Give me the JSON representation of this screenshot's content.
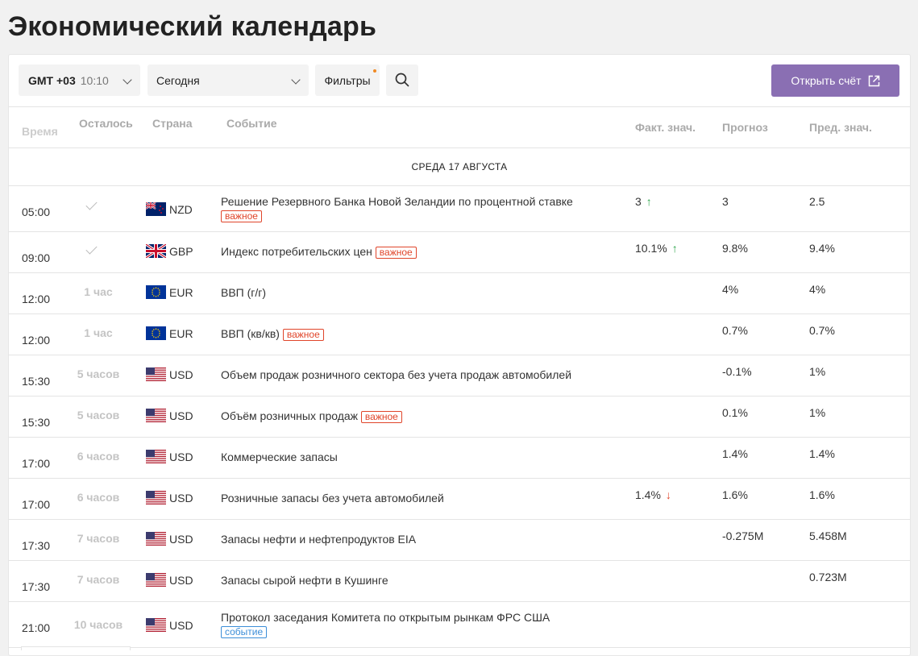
{
  "page_title": "Экономический календарь",
  "toolbar": {
    "timezone_gmt": "GMT +03",
    "timezone_time": "10:10",
    "date_value": "Сегодня",
    "filters_label": "Фильтры",
    "open_account_label": "Открыть счёт"
  },
  "columns": {
    "time": "Время",
    "left": "Осталось",
    "country": "Страна",
    "event": "Событие",
    "actual": "Факт. знач.",
    "forecast": "Прогноз",
    "previous": "Пред. знач."
  },
  "day_label": "СРЕДА 17 АВГУСТА",
  "rows": [
    {
      "time": "05:00",
      "left": "",
      "done": true,
      "flag": "nz",
      "currency": "NZD",
      "event": "Решение Резервного Банка Новой Зеландии по процентной ставке",
      "badge": "важное",
      "badge_kind": "red",
      "badge_newline": true,
      "actual": "3",
      "trend": "up",
      "forecast": "3",
      "previous": "2.5"
    },
    {
      "time": "09:00",
      "left": "",
      "done": true,
      "flag": "gb",
      "currency": "GBP",
      "event": "Индекс потребительских цен",
      "badge": "важное",
      "badge_kind": "red",
      "badge_newline": false,
      "actual": "10.1%",
      "trend": "up",
      "forecast": "9.8%",
      "previous": "9.4%"
    },
    {
      "time": "12:00",
      "left": "1 час",
      "done": false,
      "flag": "eu",
      "currency": "EUR",
      "event": "ВВП (г/г)",
      "badge": "",
      "badge_kind": "",
      "badge_newline": false,
      "actual": "",
      "trend": "",
      "forecast": "4%",
      "previous": "4%"
    },
    {
      "time": "12:00",
      "left": "1 час",
      "done": false,
      "flag": "eu",
      "currency": "EUR",
      "event": "ВВП (кв/кв)",
      "badge": "важное",
      "badge_kind": "red",
      "badge_newline": false,
      "actual": "",
      "trend": "",
      "forecast": "0.7%",
      "previous": "0.7%"
    },
    {
      "time": "15:30",
      "left": "5 часов",
      "done": false,
      "flag": "us",
      "currency": "USD",
      "event": "Объем продаж розничного сектора без учета продаж автомобилей",
      "badge": "",
      "badge_kind": "",
      "badge_newline": false,
      "actual": "",
      "trend": "",
      "forecast": "-0.1%",
      "previous": "1%"
    },
    {
      "time": "15:30",
      "left": "5 часов",
      "done": false,
      "flag": "us",
      "currency": "USD",
      "event": "Объём розничных продаж",
      "badge": "важное",
      "badge_kind": "red",
      "badge_newline": false,
      "actual": "",
      "trend": "",
      "forecast": "0.1%",
      "previous": "1%"
    },
    {
      "time": "17:00",
      "left": "6 часов",
      "done": false,
      "flag": "us",
      "currency": "USD",
      "event": "Коммерческие запасы",
      "badge": "",
      "badge_kind": "",
      "badge_newline": false,
      "actual": "",
      "trend": "",
      "forecast": "1.4%",
      "previous": "1.4%"
    },
    {
      "time": "17:00",
      "left": "6 часов",
      "done": false,
      "flag": "us",
      "currency": "USD",
      "event": "Розничные запасы без учета автомобилей",
      "badge": "",
      "badge_kind": "",
      "badge_newline": false,
      "actual": "1.4%",
      "trend": "down",
      "forecast": "1.6%",
      "previous": "1.6%"
    },
    {
      "time": "17:30",
      "left": "7 часов",
      "done": false,
      "flag": "us",
      "currency": "USD",
      "event": "Запасы нефти и нефтепродуктов EIA",
      "badge": "",
      "badge_kind": "",
      "badge_newline": false,
      "actual": "",
      "trend": "",
      "forecast": "-0.275M",
      "previous": "5.458M"
    },
    {
      "time": "17:30",
      "left": "7 часов",
      "done": false,
      "flag": "us",
      "currency": "USD",
      "event": "Запасы сырой нефти в Кушинге",
      "badge": "",
      "badge_kind": "",
      "badge_newline": false,
      "actual": "",
      "trend": "",
      "forecast": "",
      "previous": "0.723M"
    },
    {
      "time": "21:00",
      "left": "10 часов",
      "done": false,
      "flag": "us",
      "currency": "USD",
      "event": "Протокол заседания Комитета по открытым рынкам ФРС США",
      "badge": "событие",
      "badge_kind": "blue",
      "badge_newline": true,
      "actual": "",
      "trend": "",
      "forecast": "",
      "previous": ""
    }
  ]
}
